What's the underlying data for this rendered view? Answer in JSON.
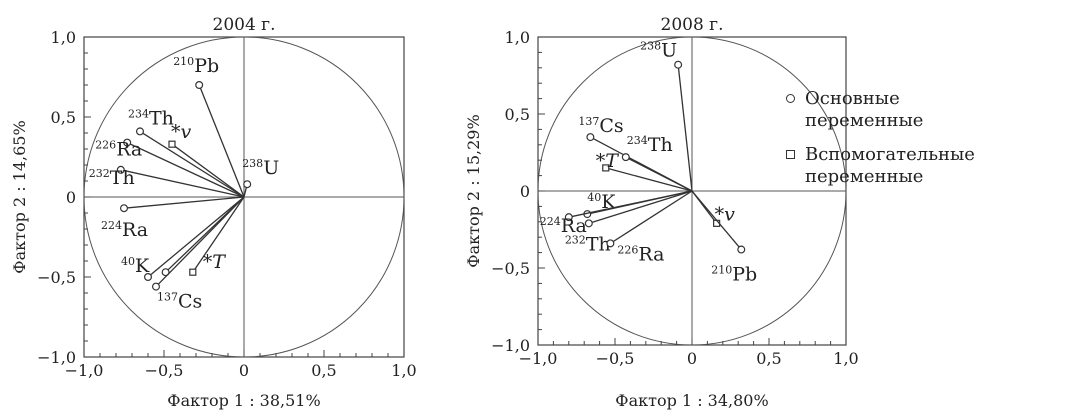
{
  "chart_data": [
    {
      "type": "scatter",
      "title": "2004 г.",
      "xlabel": "Фактор 1 : 38,51%",
      "ylabel": "Фактор 2 : 14,65%",
      "xlim": [
        -1.0,
        1.0
      ],
      "ylim": [
        -1.0,
        1.0
      ],
      "xticks": [
        "−1,0",
        "−0,5",
        "0",
        "0,5",
        "1,0"
      ],
      "yticks": [
        "−1,0",
        "−0,5",
        "0",
        "0,5",
        "1,0"
      ],
      "grid": false,
      "points": [
        {
          "sup": "210",
          "base": "Pb",
          "x": -0.28,
          "y": 0.7,
          "kind": "main"
        },
        {
          "sup": "234",
          "base": "Th",
          "x": -0.65,
          "y": 0.41,
          "kind": "main"
        },
        {
          "sup": "226",
          "base": "Ra",
          "x": -0.73,
          "y": 0.34,
          "kind": "main"
        },
        {
          "sup": "",
          "base": "*v",
          "x": -0.45,
          "y": 0.33,
          "kind": "aux"
        },
        {
          "sup": "232",
          "base": "Th",
          "x": -0.77,
          "y": 0.17,
          "kind": "main"
        },
        {
          "sup": "238",
          "base": "U",
          "x": 0.02,
          "y": 0.08,
          "kind": "main"
        },
        {
          "sup": "224",
          "base": "Ra",
          "x": -0.75,
          "y": -0.07,
          "kind": "main"
        },
        {
          "sup": "",
          "base": "*T",
          "x": -0.32,
          "y": -0.47,
          "kind": "aux"
        },
        {
          "sup": "",
          "base": "",
          "x": -0.49,
          "y": -0.47,
          "kind": "main"
        },
        {
          "sup": "40",
          "base": "K",
          "x": -0.6,
          "y": -0.5,
          "kind": "main"
        },
        {
          "sup": "137",
          "base": "Cs",
          "x": -0.55,
          "y": -0.56,
          "kind": "main"
        }
      ]
    },
    {
      "type": "scatter",
      "title": "2008 г.",
      "xlabel": "Фактор 1 : 34,80%",
      "ylabel": "Фактор 2 : 15,29%",
      "xlim": [
        -1.0,
        1.0
      ],
      "ylim": [
        -1.0,
        1.0
      ],
      "xticks": [
        "−1,0",
        "−0,5",
        "0",
        "0,5",
        "1,0"
      ],
      "yticks": [
        "−1,0",
        "−0,5",
        "0",
        "0,5",
        "1,0"
      ],
      "grid": false,
      "points": [
        {
          "sup": "238",
          "base": "U",
          "x": -0.09,
          "y": 0.82,
          "kind": "main"
        },
        {
          "sup": "137",
          "base": "Cs",
          "x": -0.66,
          "y": 0.35,
          "kind": "main"
        },
        {
          "sup": "234",
          "base": "Th",
          "x": -0.43,
          "y": 0.22,
          "kind": "main"
        },
        {
          "sup": "",
          "base": "*T",
          "x": -0.56,
          "y": 0.15,
          "kind": "aux"
        },
        {
          "sup": "40",
          "base": "K",
          "x": -0.68,
          "y": -0.15,
          "kind": "main"
        },
        {
          "sup": "224",
          "base": "Ra",
          "x": -0.8,
          "y": -0.17,
          "kind": "main"
        },
        {
          "sup": "232",
          "base": "Th",
          "x": -0.67,
          "y": -0.21,
          "kind": "main"
        },
        {
          "sup": "226",
          "base": "Ra",
          "x": -0.53,
          "y": -0.34,
          "kind": "main"
        },
        {
          "sup": "",
          "base": "*v",
          "x": 0.16,
          "y": -0.21,
          "kind": "aux"
        },
        {
          "sup": "210",
          "base": "Pb",
          "x": 0.32,
          "y": -0.38,
          "kind": "main"
        }
      ]
    }
  ],
  "legend": {
    "items": [
      {
        "marker": "circle",
        "label": "Основные переменные"
      },
      {
        "marker": "square",
        "label": "Вспомогательные переменные"
      }
    ]
  }
}
